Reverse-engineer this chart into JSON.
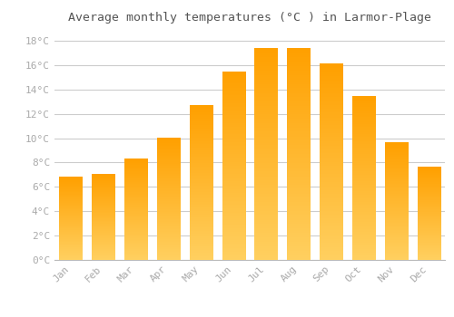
{
  "title": "Average monthly temperatures (°C ) in Larmor-Plage",
  "months": [
    "Jan",
    "Feb",
    "Mar",
    "Apr",
    "May",
    "Jun",
    "Jul",
    "Aug",
    "Sep",
    "Oct",
    "Nov",
    "Dec"
  ],
  "temperatures": [
    6.8,
    7.0,
    8.3,
    10.0,
    12.7,
    15.4,
    17.4,
    17.4,
    16.1,
    13.4,
    9.6,
    7.6
  ],
  "bar_color_bottom": "#FFD060",
  "bar_color_top": "#FFA000",
  "background_color": "#FFFFFF",
  "plot_bg_color": "#FFFFFF",
  "grid_color": "#CCCCCC",
  "tick_label_color": "#AAAAAA",
  "title_color": "#555555",
  "ylim": [
    0,
    19
  ],
  "yticks": [
    0,
    2,
    4,
    6,
    8,
    10,
    12,
    14,
    16,
    18
  ],
  "title_fontsize": 9.5,
  "tick_fontsize": 8,
  "bar_width": 0.7,
  "font_family": "monospace"
}
